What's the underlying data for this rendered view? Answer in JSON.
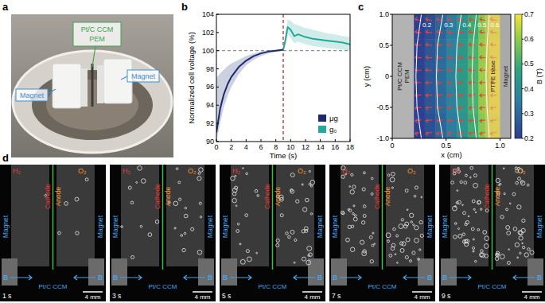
{
  "panel_labels": [
    "a",
    "b",
    "c",
    "d"
  ],
  "photo_a": {
    "ccm_lines": [
      "Pt/C CCM",
      "PEM"
    ],
    "magnet": "Magnet"
  },
  "chart_data": [
    {
      "type": "line",
      "x_label": "Time (s)",
      "y_label": "Normalized cell voltage (%)",
      "xlim": [
        0,
        18
      ],
      "xticks": [
        0,
        2,
        4,
        6,
        8,
        10,
        12,
        14,
        16,
        18
      ],
      "ylim": [
        90,
        104
      ],
      "yticks": [
        90,
        92,
        94,
        96,
        98,
        100,
        102,
        104
      ],
      "hline": 100,
      "vline": 9,
      "legend": "lower right",
      "series": [
        {
          "name": "μg",
          "color": "#1d2a6e",
          "x": [
            0,
            0.5,
            1,
            1.5,
            2,
            3,
            4,
            5,
            6,
            7,
            8,
            9
          ],
          "values": [
            91.0,
            93.6,
            95.2,
            96.3,
            97.1,
            98.2,
            98.9,
            99.4,
            99.7,
            99.9,
            100.0,
            100.1
          ],
          "band_lower": [
            90.0,
            92.0,
            93.8,
            95.0,
            96.0,
            97.4,
            98.4,
            99.0,
            99.4,
            99.7,
            99.9,
            100.0
          ],
          "band_upper": [
            97.0,
            97.5,
            97.9,
            98.3,
            98.6,
            99.0,
            99.4,
            99.7,
            99.9,
            100.0,
            100.1,
            100.2
          ]
        },
        {
          "name": "g₀",
          "color": "#25a89a",
          "x": [
            9,
            9.3,
            9.6,
            10,
            10.5,
            11,
            12,
            13,
            14,
            15,
            16,
            17,
            18
          ],
          "values": [
            100.1,
            101.2,
            102.6,
            102.3,
            101.6,
            101.8,
            101.5,
            101.3,
            101.2,
            101.1,
            101.0,
            100.9,
            100.7
          ],
          "band_lower": [
            100.0,
            100.6,
            101.8,
            101.4,
            100.8,
            101.0,
            100.7,
            100.5,
            100.4,
            100.3,
            100.2,
            100.1,
            100.0
          ],
          "band_upper": [
            100.2,
            101.9,
            103.4,
            103.3,
            102.9,
            102.8,
            102.5,
            102.3,
            102.1,
            101.9,
            101.8,
            101.6,
            101.5
          ]
        }
      ]
    },
    {
      "type": "heatmap",
      "x_label": "x (cm)",
      "y_label": "y (cm)",
      "xlim": [
        0,
        1.1
      ],
      "xticks": [
        0,
        0.5,
        {
          "value": 1,
          "label": "1.0"
        }
      ],
      "ylim": [
        -1,
        1
      ],
      "yticks": [
        {
          "value": -1,
          "label": "-1.0"
        },
        {
          "value": -0.5,
          "label": "-0.5"
        },
        0,
        0.5,
        {
          "value": 1,
          "label": "1.0"
        }
      ],
      "cell_x": [
        0.25,
        0.35,
        0.45,
        0.55,
        0.65,
        0.75,
        0.85,
        0.95
      ],
      "cell_y": [
        -0.8,
        -0.4,
        0,
        0.4,
        0.8
      ],
      "cells": [
        [
          0.19,
          0.24,
          0.29,
          0.35,
          0.42,
          0.5,
          0.59,
          0.66
        ],
        [
          0.205,
          0.255,
          0.305,
          0.365,
          0.435,
          0.515,
          0.605,
          0.675
        ],
        [
          0.21,
          0.26,
          0.31,
          0.37,
          0.44,
          0.52,
          0.61,
          0.68
        ],
        [
          0.205,
          0.255,
          0.305,
          0.365,
          0.435,
          0.515,
          0.605,
          0.675
        ],
        [
          0.19,
          0.24,
          0.29,
          0.35,
          0.42,
          0.5,
          0.59,
          0.66
        ]
      ],
      "colorbar_label": "B (T)",
      "colorbar_range": [
        0.2,
        0.7
      ],
      "colorbar_ticks": [
        0.2,
        0.3,
        0.4,
        0.5,
        0.6,
        0.7
      ],
      "contours": [
        {
          "level": 0.2,
          "x": [
            0.27,
            0.23,
            0.22,
            0.23,
            0.27
          ],
          "y": [
            1,
            0.5,
            0,
            -0.5,
            -1
          ]
        },
        {
          "level": 0.3,
          "x": [
            0.47,
            0.42,
            0.41,
            0.42,
            0.47
          ],
          "y": [
            1,
            0.5,
            0,
            -0.5,
            -1
          ]
        },
        {
          "level": 0.4,
          "x": [
            0.64,
            0.6,
            0.59,
            0.6,
            0.64
          ],
          "y": [
            1,
            0.5,
            0,
            -0.5,
            -1
          ]
        },
        {
          "level": 0.5,
          "x": [
            0.78,
            0.75,
            0.74,
            0.75,
            0.78
          ],
          "y": [
            1,
            0.5,
            0,
            -0.5,
            -1
          ]
        },
        {
          "level": 0.6,
          "x": [
            0.9,
            0.88,
            0.87,
            0.88,
            0.9
          ],
          "y": [
            1,
            0.5,
            0,
            -0.5,
            -1
          ]
        }
      ],
      "regions": [
        {
          "label_lines": [
            "Pt/C CCM",
            "PEM"
          ],
          "xrange": [
            0,
            0.2
          ],
          "color": "#b3b3b3"
        },
        {
          "label_lines": [
            "PTFE base"
          ],
          "xrange": [
            0.86,
            1.0
          ],
          "color": "#e8c46a"
        },
        {
          "label_lines": [
            "Magnet"
          ],
          "xrange": [
            1.0,
            1.1
          ],
          "color": "#a9a9a9"
        }
      ]
    }
  ],
  "photos_d": {
    "labels": {
      "h2": "H₂",
      "o2": "O₂",
      "cathode": "Cathode",
      "anode": "Anode",
      "magnet": "Magnet",
      "ccm": "Pt/C CCM",
      "field": "B",
      "scale": "4 mm"
    },
    "times": [
      "1 s",
      "3 s",
      "5 s",
      "7 s",
      "9 s"
    ]
  }
}
